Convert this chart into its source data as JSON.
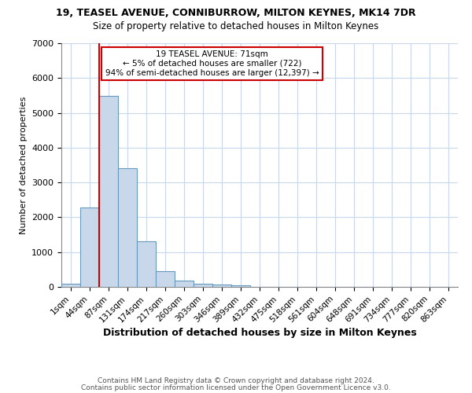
{
  "title1": "19, TEASEL AVENUE, CONNIBURROW, MILTON KEYNES, MK14 7DR",
  "title2": "Size of property relative to detached houses in Milton Keynes",
  "xlabel": "Distribution of detached houses by size in Milton Keynes",
  "ylabel": "Number of detached properties",
  "categories": [
    "1sqm",
    "44sqm",
    "87sqm",
    "131sqm",
    "174sqm",
    "217sqm",
    "260sqm",
    "303sqm",
    "346sqm",
    "389sqm",
    "432sqm",
    "475sqm",
    "518sqm",
    "561sqm",
    "604sqm",
    "648sqm",
    "691sqm",
    "734sqm",
    "777sqm",
    "820sqm",
    "863sqm"
  ],
  "bar_values": [
    80,
    2280,
    5480,
    3420,
    1310,
    460,
    180,
    95,
    70,
    50,
    10,
    0,
    0,
    0,
    0,
    0,
    0,
    0,
    0,
    0,
    0
  ],
  "bar_color": "#c8d8ea",
  "bar_edge_color": "#6699bb",
  "vline_x_index": 2,
  "vline_color": "#cc0000",
  "annotation_text": "19 TEASEL AVENUE: 71sqm\n← 5% of detached houses are smaller (722)\n94% of semi-detached houses are larger (12,397) →",
  "annotation_box_edge": "#cc0000",
  "ylim": [
    0,
    7000
  ],
  "yticks": [
    0,
    1000,
    2000,
    3000,
    4000,
    5000,
    6000,
    7000
  ],
  "footer1": "Contains HM Land Registry data © Crown copyright and database right 2024.",
  "footer2": "Contains public sector information licensed under the Open Government Licence v3.0.",
  "bg_color": "#ffffff",
  "grid_color": "#c8d8ea"
}
